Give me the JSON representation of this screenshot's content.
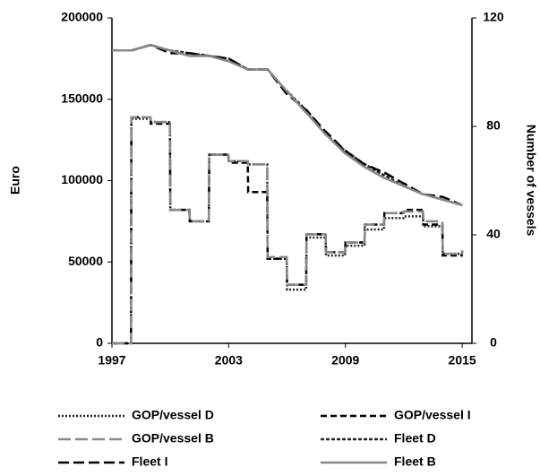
{
  "chart_data": {
    "type": "line",
    "y_label": "Euro",
    "y2_label": "Number of vessels",
    "x": [
      1997,
      1997.98,
      1998,
      1998.98,
      1999,
      1999.98,
      2000,
      2000.98,
      2001,
      2001.98,
      2002,
      2002.98,
      2003,
      2003.98,
      2004,
      2004.98,
      2005,
      2005.98,
      2006,
      2006.98,
      2007,
      2007.98,
      2008,
      2008.98,
      2009,
      2009.98,
      2010,
      2010.98,
      2011,
      2011.98,
      2012,
      2012.98,
      2013,
      2013.98,
      2014,
      2014.98,
      2015
    ],
    "xlim": [
      1997,
      2015.5
    ],
    "xticks": [
      1997,
      2003,
      2009,
      2015
    ],
    "ylim": [
      0,
      200000
    ],
    "yticks": [
      0,
      50000,
      100000,
      150000,
      200000
    ],
    "y2lim": [
      0,
      120
    ],
    "y2ticks": [
      0,
      40,
      80,
      120
    ],
    "series": [
      {
        "name": "GOP/vessel D",
        "color": "#222222",
        "dash": "2,2",
        "values": [
          0,
          0,
          138000,
          138000,
          136000,
          136000,
          82000,
          82000,
          75000,
          75000,
          116000,
          116000,
          112000,
          112000,
          110000,
          110000,
          52000,
          52000,
          33000,
          33000,
          65000,
          65000,
          54000,
          54000,
          60000,
          60000,
          70000,
          70000,
          77000,
          77000,
          78000,
          78000,
          72000,
          72000,
          55000,
          55000,
          57000
        ]
      },
      {
        "name": "GOP/vessel I",
        "color": "#000000",
        "dash": "7,4",
        "values": [
          0,
          0,
          139000,
          139000,
          135000,
          135000,
          82000,
          82000,
          75000,
          75000,
          116000,
          116000,
          111000,
          111000,
          93000,
          93000,
          52000,
          52000,
          36000,
          36000,
          67000,
          67000,
          56000,
          56000,
          62000,
          62000,
          73000,
          73000,
          80000,
          80000,
          82000,
          82000,
          73000,
          73000,
          54000,
          54000,
          57000
        ]
      },
      {
        "name": "GOP/vessel B",
        "color": "#888888",
        "dash": "14,5",
        "values": [
          0,
          0,
          139000,
          139000,
          136000,
          136000,
          82000,
          82000,
          75000,
          75000,
          116000,
          116000,
          112000,
          112000,
          110000,
          110000,
          53000,
          53000,
          36000,
          36000,
          67000,
          67000,
          56000,
          56000,
          62000,
          62000,
          73000,
          73000,
          80000,
          80000,
          81000,
          81000,
          75000,
          75000,
          55000,
          55000,
          57000
        ]
      },
      {
        "name": "Fleet D",
        "color": "#222222",
        "dash": "4,2",
        "axis": "y2",
        "values": [
          108,
          108,
          108,
          110,
          110,
          108,
          108,
          107,
          107,
          106,
          106,
          105,
          105,
          101,
          101,
          101,
          101,
          93,
          93,
          86,
          86,
          77,
          77,
          71,
          71,
          66,
          66,
          62,
          62,
          58,
          58,
          55,
          55,
          53,
          53,
          51,
          51
        ]
      },
      {
        "name": "Fleet I",
        "color": "#000000",
        "dash": "12,5",
        "axis": "y2",
        "values": [
          108,
          108,
          108,
          110,
          110,
          107,
          107,
          107,
          107,
          106,
          106,
          105,
          105,
          101,
          101,
          101,
          101,
          92,
          92,
          86,
          86,
          78,
          78,
          71,
          71,
          66,
          66,
          63,
          63,
          59,
          59,
          55,
          55,
          54,
          54,
          51,
          51
        ]
      },
      {
        "name": "Fleet B",
        "color": "#888888",
        "dash": "",
        "axis": "y2",
        "values": [
          108,
          108,
          108,
          110,
          110,
          108,
          108,
          106,
          106,
          106,
          106,
          104,
          104,
          101,
          101,
          101,
          101,
          93,
          93,
          85,
          85,
          77,
          77,
          70,
          70,
          65,
          65,
          61,
          61,
          58,
          58,
          55,
          55,
          53,
          53,
          51,
          51
        ]
      }
    ]
  }
}
